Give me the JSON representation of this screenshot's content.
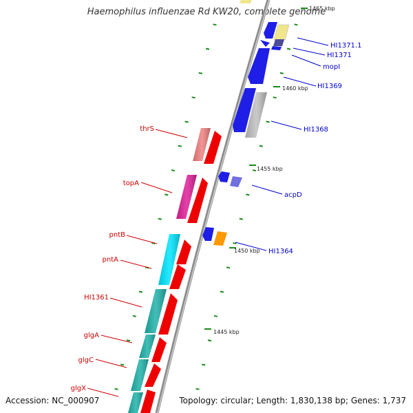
{
  "title": "Haemophilus influenzae Rd KW20, complete genome",
  "footer": {
    "accession": "Accession: NC_000907",
    "summary": "Topology: circular; Length: 1,830,138 bp; Genes: 1,737"
  },
  "colors": {
    "backbone": "#8c8c8c",
    "forward_label": "#cc0000",
    "reverse_label": "#0000cc",
    "ticks": "#1a8a1a"
  },
  "scale_marks": [
    {
      "label": "1465 kbp"
    },
    {
      "label": "1460 kbp"
    },
    {
      "label": "1455 kbp"
    },
    {
      "label": "1450 kbp"
    },
    {
      "label": "1445 kbp"
    }
  ],
  "reverse_genes": [
    {
      "name": "HI1371.1",
      "color": "#f0e68c"
    },
    {
      "name": "HI1371",
      "color": "#1e1ee6"
    },
    {
      "name": "mopI",
      "color": "#1e1ee6"
    },
    {
      "name": "HI1369",
      "color": "#1e1ee6"
    },
    {
      "name": "HI1368",
      "color": "#c0c0c0"
    },
    {
      "name": "acpD",
      "color": "#7070e0"
    },
    {
      "name": "HI1364",
      "color": "#ff9900"
    }
  ],
  "forward_genes": [
    {
      "name": "thrS",
      "color": "#f08080"
    },
    {
      "name": "topA",
      "color": "#e0209a"
    },
    {
      "name": "pntB",
      "color": "#00e5ff"
    },
    {
      "name": "pntA",
      "color": "#00e5ff"
    },
    {
      "name": "HI1361",
      "color": "#20b2aa"
    },
    {
      "name": "glgA",
      "color": "#20b2aa"
    },
    {
      "name": "glgC",
      "color": "#20b2aa"
    },
    {
      "name": "glgX",
      "color": "#20b2aa"
    }
  ]
}
